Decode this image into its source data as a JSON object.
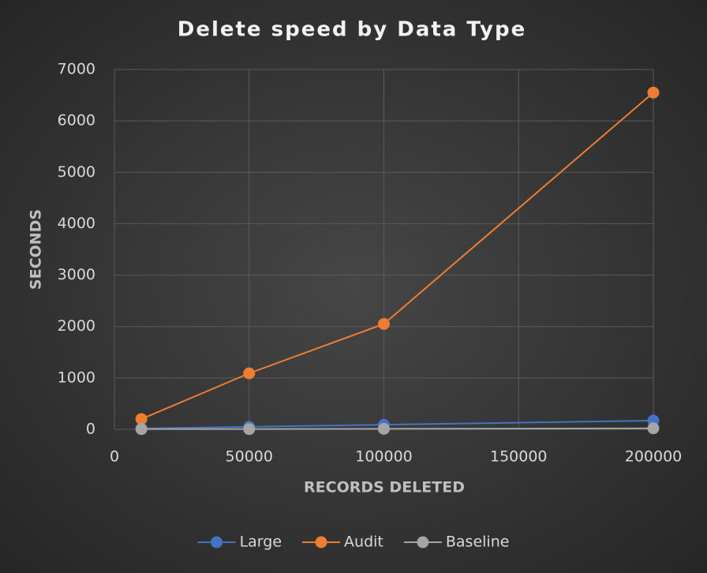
{
  "chart_data": {
    "type": "line",
    "title": "Delete speed by Data Type",
    "x_label": "RECORDS DELETED",
    "y_label": "SECONDS",
    "x": [
      10000,
      50000,
      100000,
      200000
    ],
    "series": [
      {
        "name": "Large",
        "color": "#4472c4",
        "values": [
          15,
          50,
          90,
          170
        ]
      },
      {
        "name": "Audit",
        "color": "#ed7d31",
        "values": [
          200,
          1090,
          2050,
          6550
        ]
      },
      {
        "name": "Baseline",
        "color": "#a5a5a5",
        "values": [
          5,
          5,
          10,
          20
        ]
      }
    ],
    "xlim": [
      0,
      200000
    ],
    "xticks": [
      0,
      50000,
      100000,
      150000,
      200000
    ],
    "ylim": [
      0,
      7000
    ],
    "yticks": [
      0,
      1000,
      2000,
      3000,
      4000,
      5000,
      6000,
      7000
    ],
    "grid": true,
    "legend": "bottom"
  }
}
